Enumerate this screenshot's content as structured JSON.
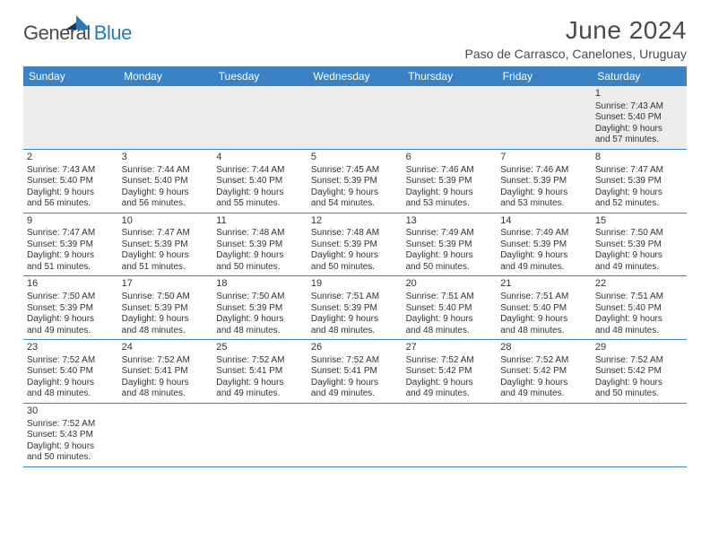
{
  "brand": {
    "part1": "General",
    "part2": "Blue"
  },
  "title": "June 2024",
  "location": "Paso de Carrasco, Canelones, Uruguay",
  "colors": {
    "header_bg": "#3a82c4",
    "header_text": "#ffffff",
    "rule": "#3a82c4",
    "brand_gray": "#4a4a4a",
    "brand_blue": "#2a7ab8",
    "first_row_bg": "#ececec",
    "body_text": "#333333"
  },
  "typography": {
    "title_fontsize": 28,
    "location_fontsize": 14,
    "dayheader_fontsize": 12,
    "cell_fontsize": 10
  },
  "day_headers": [
    "Sunday",
    "Monday",
    "Tuesday",
    "Wednesday",
    "Thursday",
    "Friday",
    "Saturday"
  ],
  "weeks": [
    [
      null,
      null,
      null,
      null,
      null,
      null,
      {
        "n": "1",
        "sr": "Sunrise: 7:43 AM",
        "ss": "Sunset: 5:40 PM",
        "d1": "Daylight: 9 hours",
        "d2": "and 57 minutes."
      }
    ],
    [
      {
        "n": "2",
        "sr": "Sunrise: 7:43 AM",
        "ss": "Sunset: 5:40 PM",
        "d1": "Daylight: 9 hours",
        "d2": "and 56 minutes."
      },
      {
        "n": "3",
        "sr": "Sunrise: 7:44 AM",
        "ss": "Sunset: 5:40 PM",
        "d1": "Daylight: 9 hours",
        "d2": "and 56 minutes."
      },
      {
        "n": "4",
        "sr": "Sunrise: 7:44 AM",
        "ss": "Sunset: 5:40 PM",
        "d1": "Daylight: 9 hours",
        "d2": "and 55 minutes."
      },
      {
        "n": "5",
        "sr": "Sunrise: 7:45 AM",
        "ss": "Sunset: 5:39 PM",
        "d1": "Daylight: 9 hours",
        "d2": "and 54 minutes."
      },
      {
        "n": "6",
        "sr": "Sunrise: 7:46 AM",
        "ss": "Sunset: 5:39 PM",
        "d1": "Daylight: 9 hours",
        "d2": "and 53 minutes."
      },
      {
        "n": "7",
        "sr": "Sunrise: 7:46 AM",
        "ss": "Sunset: 5:39 PM",
        "d1": "Daylight: 9 hours",
        "d2": "and 53 minutes."
      },
      {
        "n": "8",
        "sr": "Sunrise: 7:47 AM",
        "ss": "Sunset: 5:39 PM",
        "d1": "Daylight: 9 hours",
        "d2": "and 52 minutes."
      }
    ],
    [
      {
        "n": "9",
        "sr": "Sunrise: 7:47 AM",
        "ss": "Sunset: 5:39 PM",
        "d1": "Daylight: 9 hours",
        "d2": "and 51 minutes."
      },
      {
        "n": "10",
        "sr": "Sunrise: 7:47 AM",
        "ss": "Sunset: 5:39 PM",
        "d1": "Daylight: 9 hours",
        "d2": "and 51 minutes."
      },
      {
        "n": "11",
        "sr": "Sunrise: 7:48 AM",
        "ss": "Sunset: 5:39 PM",
        "d1": "Daylight: 9 hours",
        "d2": "and 50 minutes."
      },
      {
        "n": "12",
        "sr": "Sunrise: 7:48 AM",
        "ss": "Sunset: 5:39 PM",
        "d1": "Daylight: 9 hours",
        "d2": "and 50 minutes."
      },
      {
        "n": "13",
        "sr": "Sunrise: 7:49 AM",
        "ss": "Sunset: 5:39 PM",
        "d1": "Daylight: 9 hours",
        "d2": "and 50 minutes."
      },
      {
        "n": "14",
        "sr": "Sunrise: 7:49 AM",
        "ss": "Sunset: 5:39 PM",
        "d1": "Daylight: 9 hours",
        "d2": "and 49 minutes."
      },
      {
        "n": "15",
        "sr": "Sunrise: 7:50 AM",
        "ss": "Sunset: 5:39 PM",
        "d1": "Daylight: 9 hours",
        "d2": "and 49 minutes."
      }
    ],
    [
      {
        "n": "16",
        "sr": "Sunrise: 7:50 AM",
        "ss": "Sunset: 5:39 PM",
        "d1": "Daylight: 9 hours",
        "d2": "and 49 minutes."
      },
      {
        "n": "17",
        "sr": "Sunrise: 7:50 AM",
        "ss": "Sunset: 5:39 PM",
        "d1": "Daylight: 9 hours",
        "d2": "and 48 minutes."
      },
      {
        "n": "18",
        "sr": "Sunrise: 7:50 AM",
        "ss": "Sunset: 5:39 PM",
        "d1": "Daylight: 9 hours",
        "d2": "and 48 minutes."
      },
      {
        "n": "19",
        "sr": "Sunrise: 7:51 AM",
        "ss": "Sunset: 5:39 PM",
        "d1": "Daylight: 9 hours",
        "d2": "and 48 minutes."
      },
      {
        "n": "20",
        "sr": "Sunrise: 7:51 AM",
        "ss": "Sunset: 5:40 PM",
        "d1": "Daylight: 9 hours",
        "d2": "and 48 minutes."
      },
      {
        "n": "21",
        "sr": "Sunrise: 7:51 AM",
        "ss": "Sunset: 5:40 PM",
        "d1": "Daylight: 9 hours",
        "d2": "and 48 minutes."
      },
      {
        "n": "22",
        "sr": "Sunrise: 7:51 AM",
        "ss": "Sunset: 5:40 PM",
        "d1": "Daylight: 9 hours",
        "d2": "and 48 minutes."
      }
    ],
    [
      {
        "n": "23",
        "sr": "Sunrise: 7:52 AM",
        "ss": "Sunset: 5:40 PM",
        "d1": "Daylight: 9 hours",
        "d2": "and 48 minutes."
      },
      {
        "n": "24",
        "sr": "Sunrise: 7:52 AM",
        "ss": "Sunset: 5:41 PM",
        "d1": "Daylight: 9 hours",
        "d2": "and 48 minutes."
      },
      {
        "n": "25",
        "sr": "Sunrise: 7:52 AM",
        "ss": "Sunset: 5:41 PM",
        "d1": "Daylight: 9 hours",
        "d2": "and 49 minutes."
      },
      {
        "n": "26",
        "sr": "Sunrise: 7:52 AM",
        "ss": "Sunset: 5:41 PM",
        "d1": "Daylight: 9 hours",
        "d2": "and 49 minutes."
      },
      {
        "n": "27",
        "sr": "Sunrise: 7:52 AM",
        "ss": "Sunset: 5:42 PM",
        "d1": "Daylight: 9 hours",
        "d2": "and 49 minutes."
      },
      {
        "n": "28",
        "sr": "Sunrise: 7:52 AM",
        "ss": "Sunset: 5:42 PM",
        "d1": "Daylight: 9 hours",
        "d2": "and 49 minutes."
      },
      {
        "n": "29",
        "sr": "Sunrise: 7:52 AM",
        "ss": "Sunset: 5:42 PM",
        "d1": "Daylight: 9 hours",
        "d2": "and 50 minutes."
      }
    ],
    [
      {
        "n": "30",
        "sr": "Sunrise: 7:52 AM",
        "ss": "Sunset: 5:43 PM",
        "d1": "Daylight: 9 hours",
        "d2": "and 50 minutes."
      },
      null,
      null,
      null,
      null,
      null,
      null
    ]
  ]
}
